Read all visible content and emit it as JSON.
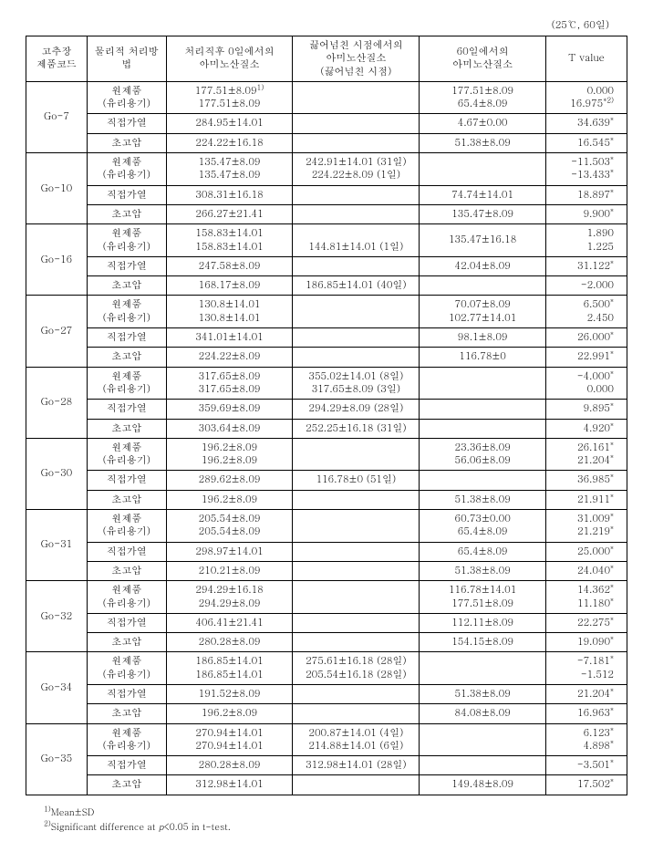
{
  "caption": "(25℃, 60일)",
  "headers": {
    "code": "고추장\n제품코드",
    "method": "물리적 처리방법",
    "t0": "처리직후 0일에서의\n아미노산질소",
    "overflow": "끓어넘친 시점에서의\n아미노산질소\n(끓어넘친 시점)",
    "t60": "60일에서의\n아미노산질소",
    "tval": "T value"
  },
  "groups": [
    {
      "code": "Go-7",
      "rows": [
        {
          "method": "원제품\n(유리용기)",
          "t0": "177.51±8.09<sup>1)</sup>\n177.51±8.09",
          "overflow": "",
          "t60": "177.51±8.09\n65.4±8.09",
          "tval": "0.000\n16.975<sup>*2)</sup>"
        },
        {
          "method": "직접가열",
          "t0": "284.95±14.01",
          "overflow": "",
          "t60": "4.67±0.00",
          "tval": "34.639<sup>*</sup>"
        },
        {
          "method": "초고압",
          "t0": "224.22±16.18",
          "overflow": "",
          "t60": "51.38±8.09",
          "tval": "16.545<sup>*</sup>"
        }
      ]
    },
    {
      "code": "Go-10",
      "rows": [
        {
          "method": "원제품\n(유리용기)",
          "t0": "135.47±8.09\n135.47±8.09",
          "overflow": "242.91±14.01 (31일)\n224.22±8.09 (1일)",
          "t60": "",
          "tval": "-11.503<sup>*</sup>\n-13.433<sup>*</sup>"
        },
        {
          "method": "직접가열",
          "t0": "308.31±16.18",
          "overflow": "",
          "t60": "74.74±14.01",
          "tval": "18.897<sup>*</sup>"
        },
        {
          "method": "초고압",
          "t0": "266.27±21.41",
          "overflow": "",
          "t60": "135.47±8.09",
          "tval": "9.900<sup>*</sup>"
        }
      ]
    },
    {
      "code": "Go-16",
      "rows": [
        {
          "method": "원제품\n(유리용기)",
          "t0": "158.83±14.01\n158.83±14.01",
          "overflow": "\n144.81±14.01 (1일)",
          "t60": "135.47±16.18",
          "tval": "1.890\n1.225"
        },
        {
          "method": "직접가열",
          "t0": "247.58±8.09",
          "overflow": "",
          "t60": "42.04±8.09",
          "tval": "31.122<sup>*</sup>"
        },
        {
          "method": "초고압",
          "t0": "168.17±8.09",
          "overflow": "186.85±14.01 (40일)",
          "t60": "",
          "tval": "-2.000"
        }
      ]
    },
    {
      "code": "Go-27",
      "rows": [
        {
          "method": "원제품\n(유리용기)",
          "t0": "130.8±14.01\n130.8±14.01",
          "overflow": "",
          "t60": "70.07±8.09\n102.77±14.01",
          "tval": "6.500<sup>*</sup>\n2.450"
        },
        {
          "method": "직접가열",
          "t0": "341.01±14.01",
          "overflow": "",
          "t60": "98.1±8.09",
          "tval": "26.000<sup>*</sup>"
        },
        {
          "method": "초고압",
          "t0": "224.22±8.09",
          "overflow": "",
          "t60": "116.78±0",
          "tval": "22.991<sup>*</sup>"
        }
      ]
    },
    {
      "code": "Go-28",
      "rows": [
        {
          "method": "원제품\n(유리용기)",
          "t0": "317.65±8.09\n317.65±8.09",
          "overflow": "355.02±14.01 (8일)\n317.65±8.09 (3일)",
          "t60": "",
          "tval": "-4.000<sup>*</sup>\n0.000"
        },
        {
          "method": "직접가열",
          "t0": "359.69±8.09",
          "overflow": "294.29±8.09 (28일)",
          "t60": "",
          "tval": "9.895<sup>*</sup>"
        },
        {
          "method": "초고압",
          "t0": "303.64±8.09",
          "overflow": "252.25±16.18 (31일)",
          "t60": "",
          "tval": "4.920<sup>*</sup>"
        }
      ]
    },
    {
      "code": "Go-30",
      "rows": [
        {
          "method": "원제품\n(유리용기)",
          "t0": "196.2±8.09\n196.2±8.09",
          "overflow": "",
          "t60": "23.36±8.09\n56.06±8.09",
          "tval": "26.161<sup>*</sup>\n21.204<sup>*</sup>"
        },
        {
          "method": "직접가열",
          "t0": "289.62±8.09",
          "overflow": "116.78±0 (51일)",
          "t60": "",
          "tval": "36.985<sup>*</sup>"
        },
        {
          "method": "초고압",
          "t0": "196.2±8.09",
          "overflow": "",
          "t60": "51.38±8.09",
          "tval": "21.911<sup>*</sup>"
        }
      ]
    },
    {
      "code": "Go-31",
      "rows": [
        {
          "method": "원제품\n(유리용기)",
          "t0": "205.54±8.09\n205.54±8.09",
          "overflow": "",
          "t60": "60.73±0.00\n65.4±8.09",
          "tval": "31.009<sup>*</sup>\n21.219<sup>*</sup>"
        },
        {
          "method": "직접가열",
          "t0": "298.97±14.01",
          "overflow": "",
          "t60": "65.4±8.09",
          "tval": "25.000<sup>*</sup>"
        },
        {
          "method": "초고압",
          "t0": "210.21±8.09",
          "overflow": "",
          "t60": "51.38±8.09",
          "tval": "24.040<sup>*</sup>"
        }
      ]
    },
    {
      "code": "Go-32",
      "rows": [
        {
          "method": "원제품\n(유리용기)",
          "t0": "294.29±16.18\n294.29±8.09",
          "overflow": "",
          "t60": "116.78±14.01\n177.51±8.09",
          "tval": "14.362<sup>*</sup>\n11.180<sup>*</sup>"
        },
        {
          "method": "직접가열",
          "t0": "406.41±21.41",
          "overflow": "",
          "t60": "112.11±8.09",
          "tval": "22.275<sup>*</sup>"
        },
        {
          "method": "초고압",
          "t0": "280.28±8.09",
          "overflow": "",
          "t60": "154.15±8.09",
          "tval": "19.090<sup>*</sup>"
        }
      ]
    },
    {
      "code": "Go-34",
      "rows": [
        {
          "method": "원제품\n(유리용기)",
          "t0": "186.85±14.01\n186.85±14.01",
          "overflow": "275.61±16.18 (28일)\n205.54±16.18 (28일)",
          "t60": "",
          "tval": "-7.181<sup>*</sup>\n-1.512"
        },
        {
          "method": "직접가열",
          "t0": "191.52±8.09",
          "overflow": "",
          "t60": "51.38±8.09",
          "tval": "21.204<sup>*</sup>"
        },
        {
          "method": "초고압",
          "t0": "196.2±8.09",
          "overflow": "",
          "t60": "84.08±8.09",
          "tval": "16.963<sup>*</sup>"
        }
      ]
    },
    {
      "code": "Go-35",
      "rows": [
        {
          "method": "원제품\n(유리용기)",
          "t0": "270.94±14.01\n270.94±14.01",
          "overflow": "200.87±14.01 (4일)\n214.88±14.01 (6일)",
          "t60": "",
          "tval": "6.123<sup>*</sup>\n4.898<sup>*</sup>"
        },
        {
          "method": "직접가열",
          "t0": "280.28±8.09",
          "overflow": "312.98±14.01 (28일)",
          "t60": "",
          "tval": "-3.501<sup>*</sup>"
        },
        {
          "method": "초고압",
          "t0": "312.98±14.01",
          "overflow": "",
          "t60": "149.48±8.09",
          "tval": "17.502<sup>*</sup>"
        }
      ]
    }
  ],
  "footnotes": {
    "f1": "<sup>1)</sup>Mean±SD",
    "f2": "<sup>2)</sup>Significant difference at <span class=\"italic\">p</span><0.05 in t-test."
  }
}
